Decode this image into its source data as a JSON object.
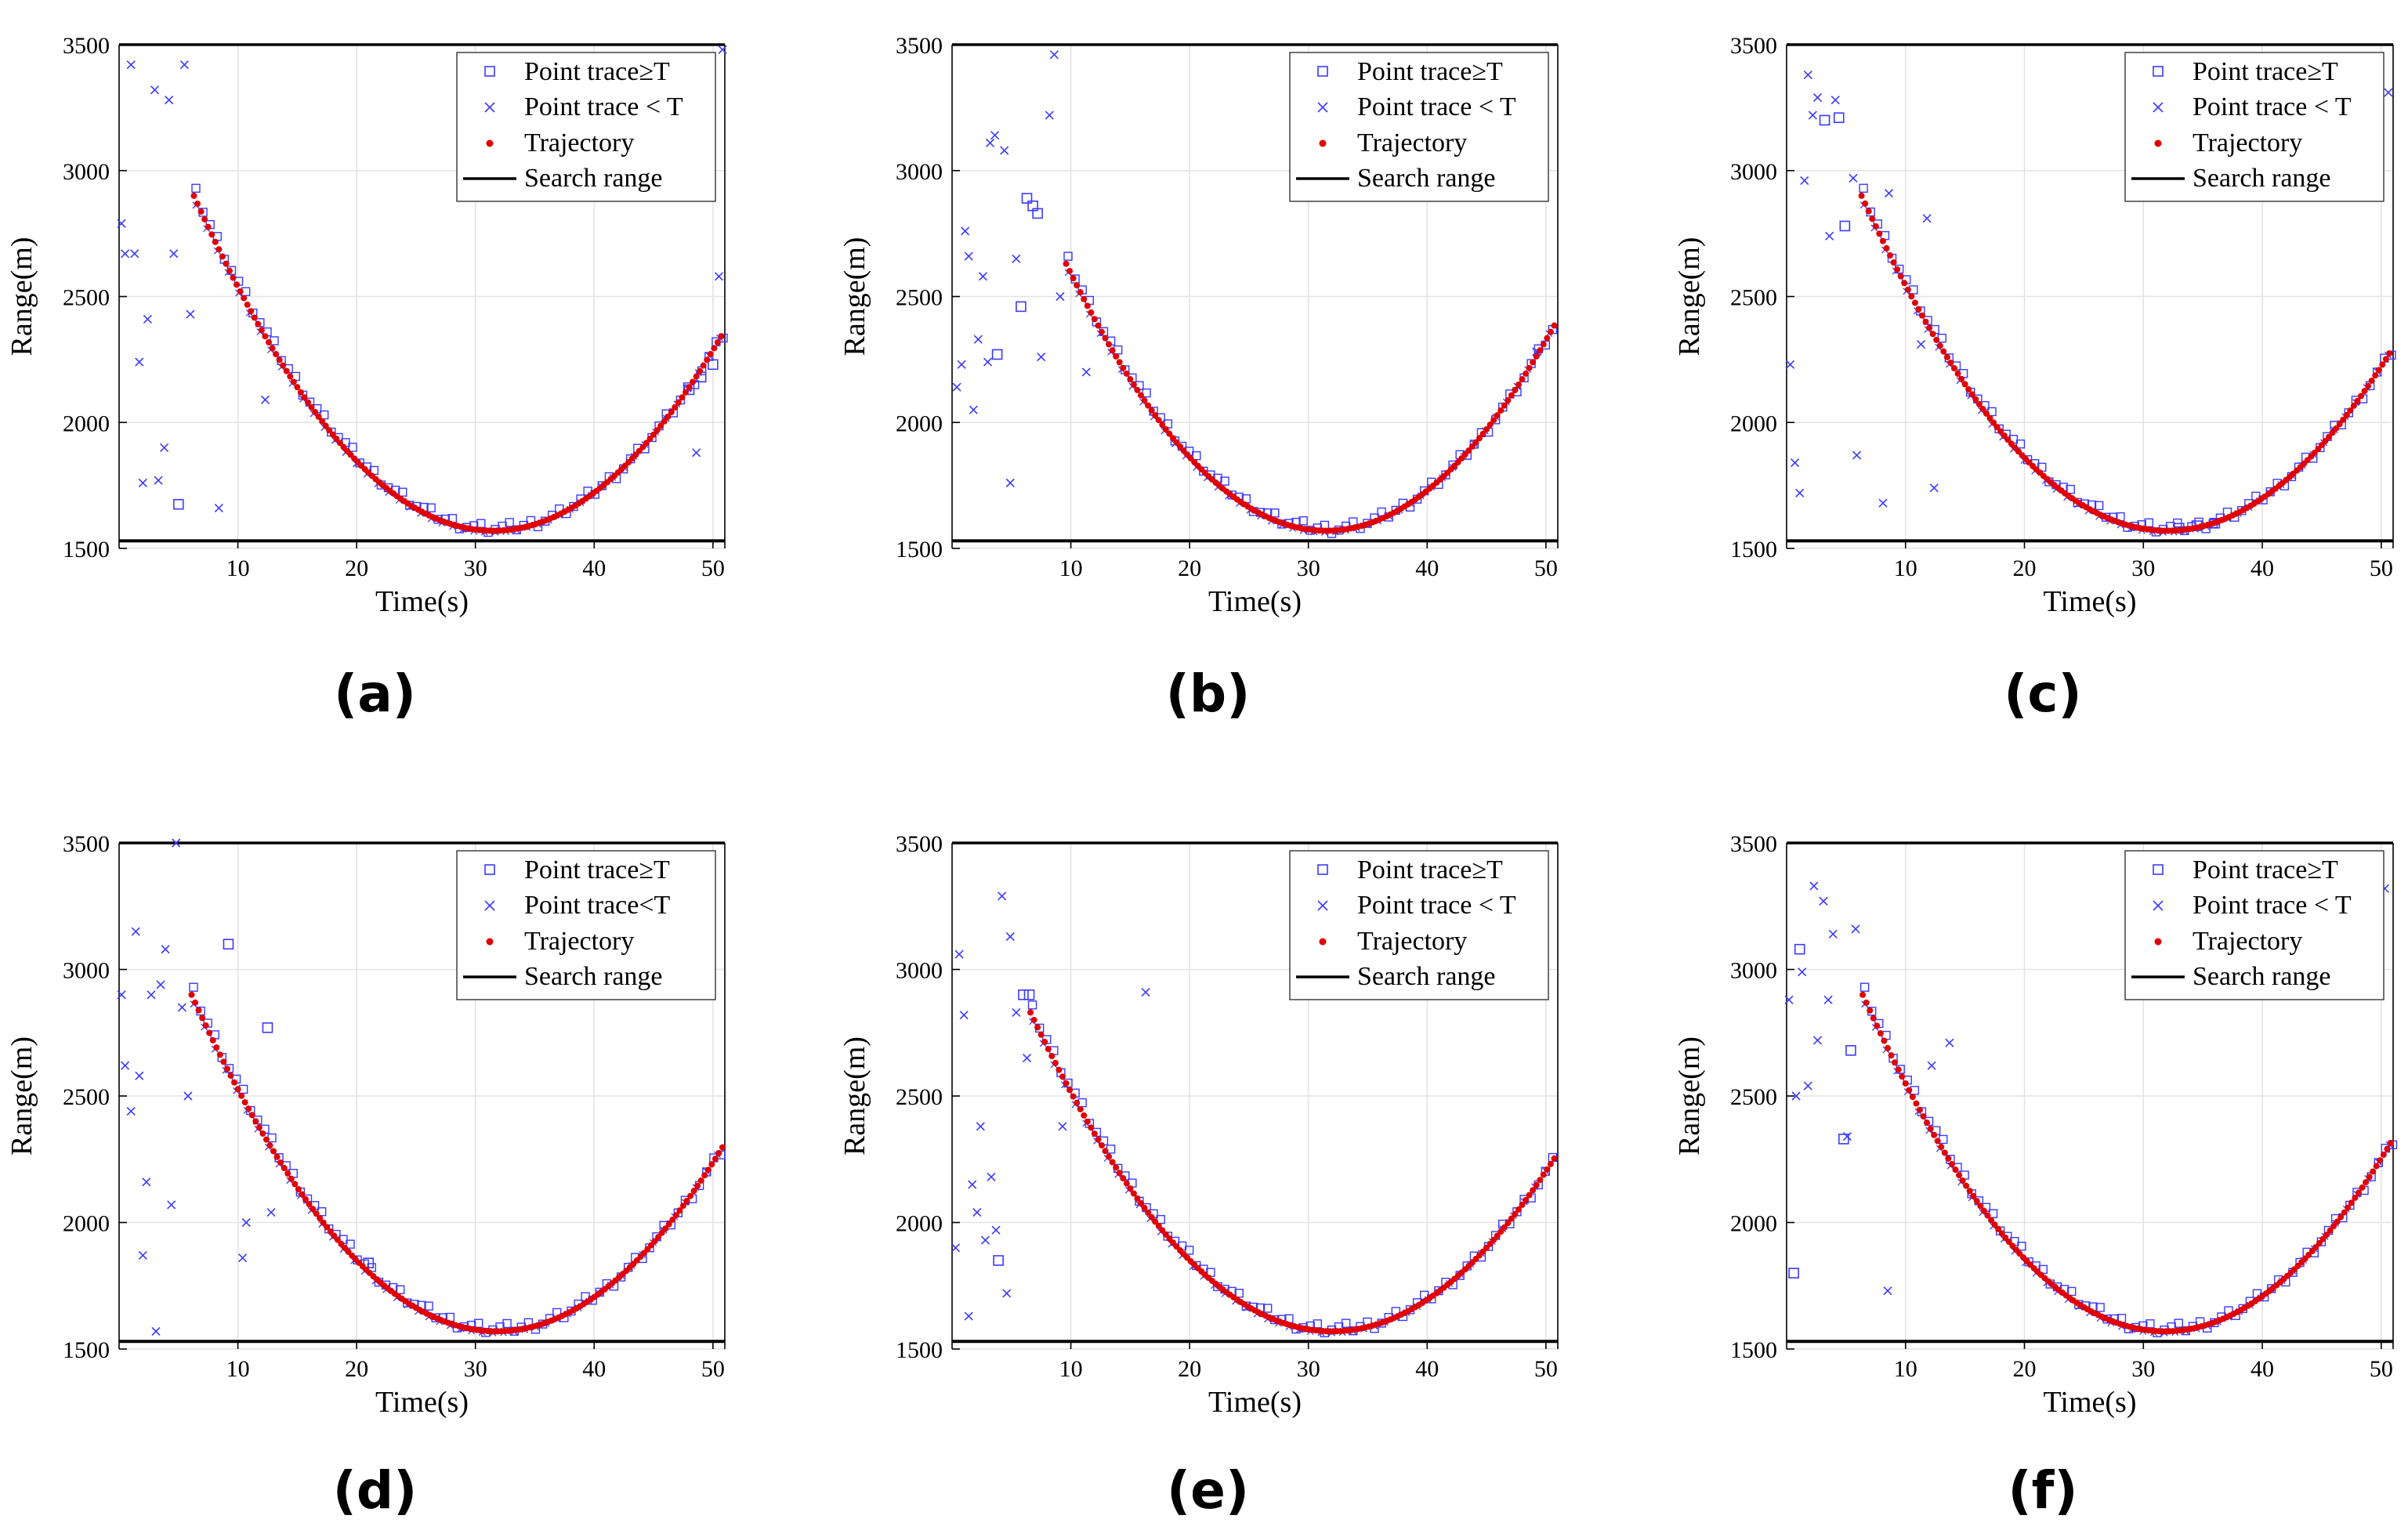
{
  "figure": {
    "legend_items": [
      "Point trace≥T",
      "Point trace < T",
      "Trajectory",
      "Search range"
    ],
    "colors": {
      "trace_marker": "#3a3aff",
      "trajectory": "#e00000",
      "search_line": "#000000",
      "grid": "#e3e3e3"
    }
  },
  "chart_data": [
    {
      "type": "scatter",
      "caption": "(a)",
      "xlabel": "Time(s)",
      "ylabel": "Range(m)",
      "xlim": [
        0,
        51
      ],
      "ylim": [
        1500,
        3500
      ],
      "xticks": [
        10,
        20,
        30,
        40,
        50
      ],
      "yticks": [
        1500,
        2000,
        2500,
        3000,
        3500
      ],
      "grid": true,
      "legend_position": "top-right",
      "legend": [
        "Point trace≥T",
        "Point trace < T",
        "Trajectory",
        "Search range"
      ],
      "search_range": 1530,
      "trajectory": {
        "t_start": 6.3,
        "t_end": 50.7,
        "t_min": 31.5,
        "r_min": 1570,
        "r_start": 2900
      },
      "point_trace_ge_T": [
        [
          5,
          1675
        ],
        [
          48,
          2130
        ],
        [
          49,
          2180
        ],
        [
          50,
          2230
        ]
      ],
      "point_trace_lt_T": [
        [
          0.2,
          2790
        ],
        [
          0.5,
          2670
        ],
        [
          1,
          3420
        ],
        [
          1.3,
          2670
        ],
        [
          1.7,
          2240
        ],
        [
          2,
          1760
        ],
        [
          2.4,
          2410
        ],
        [
          3,
          3320
        ],
        [
          3.3,
          1770
        ],
        [
          3.8,
          1900
        ],
        [
          4.2,
          3280
        ],
        [
          4.6,
          2670
        ],
        [
          5.5,
          3420
        ],
        [
          6,
          2430
        ],
        [
          8.4,
          1660
        ],
        [
          12.3,
          2090
        ],
        [
          48.6,
          1880
        ],
        [
          50.5,
          2580
        ],
        [
          50.8,
          3480
        ]
      ]
    },
    {
      "type": "scatter",
      "caption": "(b)",
      "xlabel": "Time(s)",
      "ylabel": "Range(m)",
      "xlim": [
        0,
        51
      ],
      "ylim": [
        1500,
        3500
      ],
      "xticks": [
        10,
        20,
        30,
        40,
        50
      ],
      "yticks": [
        1500,
        2000,
        2500,
        3000,
        3500
      ],
      "grid": true,
      "legend_position": "top-right",
      "legend": [
        "Point trace≥T",
        "Point trace < T",
        "Trajectory",
        "Search range"
      ],
      "search_range": 1530,
      "trajectory": {
        "t_start": 9.6,
        "t_end": 50.8,
        "t_min": 31.5,
        "r_min": 1570,
        "r_start": 2630
      },
      "point_trace_ge_T": [
        [
          3.8,
          2270
        ],
        [
          5.8,
          2460
        ],
        [
          6.3,
          2890
        ],
        [
          6.8,
          2860
        ],
        [
          7.2,
          2830
        ]
      ],
      "point_trace_lt_T": [
        [
          0.4,
          2140
        ],
        [
          0.8,
          2230
        ],
        [
          1.1,
          2760
        ],
        [
          1.4,
          2660
        ],
        [
          1.8,
          2050
        ],
        [
          2.2,
          2330
        ],
        [
          2.6,
          2580
        ],
        [
          3,
          2240
        ],
        [
          3.2,
          3110
        ],
        [
          3.6,
          3140
        ],
        [
          4.4,
          3080
        ],
        [
          4.9,
          1760
        ],
        [
          5.4,
          2650
        ],
        [
          7.5,
          2260
        ],
        [
          8.2,
          3220
        ],
        [
          8.6,
          3460
        ],
        [
          9.1,
          2500
        ],
        [
          11.3,
          2200
        ],
        [
          49.2,
          2280
        ]
      ]
    },
    {
      "type": "scatter",
      "caption": "(c)",
      "xlabel": "Time(s)",
      "ylabel": "Range(m)",
      "xlim": [
        0,
        51
      ],
      "ylim": [
        1500,
        3500
      ],
      "xticks": [
        10,
        20,
        30,
        40,
        50
      ],
      "yticks": [
        1500,
        2000,
        2500,
        3000,
        3500
      ],
      "grid": true,
      "legend_position": "top-right",
      "legend": [
        "Point trace≥T",
        "Point trace < T",
        "Trajectory",
        "Search range"
      ],
      "search_range": 1530,
      "trajectory": {
        "t_start": 6.3,
        "t_end": 50.8,
        "t_min": 32,
        "r_min": 1570,
        "r_start": 2900
      },
      "point_trace_ge_T": [
        [
          3.2,
          3200
        ],
        [
          4.4,
          3210
        ],
        [
          4.9,
          2780
        ],
        [
          33,
          1580
        ],
        [
          34.5,
          1590
        ],
        [
          36,
          1600
        ]
      ],
      "point_trace_lt_T": [
        [
          0.3,
          2230
        ],
        [
          0.7,
          1840
        ],
        [
          1.1,
          1720
        ],
        [
          1.5,
          2960
        ],
        [
          1.8,
          3380
        ],
        [
          2.2,
          3220
        ],
        [
          2.6,
          3290
        ],
        [
          3.6,
          2740
        ],
        [
          4.1,
          3280
        ],
        [
          5.6,
          2970
        ],
        [
          5.9,
          1870
        ],
        [
          8.1,
          1680
        ],
        [
          8.6,
          2910
        ],
        [
          11.3,
          2310
        ],
        [
          11.8,
          2810
        ],
        [
          12.4,
          1740
        ],
        [
          50.6,
          3310
        ]
      ]
    },
    {
      "type": "scatter",
      "caption": "(d)",
      "xlabel": "Time(s)",
      "ylabel": "Range(m)",
      "xlim": [
        0,
        51
      ],
      "ylim": [
        1500,
        3500
      ],
      "xticks": [
        10,
        20,
        30,
        40,
        50
      ],
      "yticks": [
        1500,
        2000,
        2500,
        3000,
        3500
      ],
      "grid": true,
      "legend_position": "top-right",
      "legend": [
        "Point trace≥T",
        "Point trace<T",
        "Trajectory",
        "Search range"
      ],
      "search_range": 1530,
      "trajectory": {
        "t_start": 6.1,
        "t_end": 50.9,
        "t_min": 31.8,
        "r_min": 1570,
        "r_start": 2900
      },
      "point_trace_ge_T": [
        [
          9.2,
          3100
        ],
        [
          12.5,
          2770
        ],
        [
          21,
          1840
        ]
      ],
      "point_trace_lt_T": [
        [
          0.2,
          2900
        ],
        [
          0.5,
          2620
        ],
        [
          1,
          2440
        ],
        [
          1.4,
          3150
        ],
        [
          1.7,
          2580
        ],
        [
          2,
          1870
        ],
        [
          2.3,
          2160
        ],
        [
          2.7,
          2900
        ],
        [
          3.1,
          1570
        ],
        [
          3.5,
          2940
        ],
        [
          3.9,
          3080
        ],
        [
          4.4,
          2070
        ],
        [
          4.8,
          3500
        ],
        [
          5.3,
          2850
        ],
        [
          5.8,
          2500
        ],
        [
          10.4,
          1860
        ],
        [
          10.7,
          2000
        ],
        [
          12.8,
          2040
        ]
      ]
    },
    {
      "type": "scatter",
      "caption": "(e)",
      "xlabel": "Time(s)",
      "ylabel": "Range(m)",
      "xlim": [
        0,
        51
      ],
      "ylim": [
        1500,
        3500
      ],
      "xticks": [
        10,
        20,
        30,
        40,
        50
      ],
      "yticks": [
        1500,
        2000,
        2500,
        3000,
        3500
      ],
      "grid": true,
      "legend_position": "top-right",
      "legend": [
        "Point trace≥T",
        "Point trace < T",
        "Trajectory",
        "Search range"
      ],
      "search_range": 1530,
      "trajectory": {
        "t_start": 6.6,
        "t_end": 50.8,
        "t_min": 32,
        "r_min": 1570,
        "r_start": 2830
      },
      "point_trace_ge_T": [
        [
          3.9,
          1850
        ],
        [
          6,
          2900
        ],
        [
          6.5,
          2900
        ]
      ],
      "point_trace_lt_T": [
        [
          0.3,
          1900
        ],
        [
          0.6,
          3060
        ],
        [
          1,
          2820
        ],
        [
          1.4,
          1630
        ],
        [
          1.7,
          2150
        ],
        [
          2.1,
          2040
        ],
        [
          2.4,
          2380
        ],
        [
          2.8,
          1930
        ],
        [
          3.3,
          2180
        ],
        [
          3.7,
          1970
        ],
        [
          4.2,
          3290
        ],
        [
          4.6,
          1720
        ],
        [
          4.9,
          3130
        ],
        [
          5.4,
          2830
        ],
        [
          6.3,
          2650
        ],
        [
          9.3,
          2380
        ],
        [
          16.3,
          2910
        ]
      ]
    },
    {
      "type": "scatter",
      "caption": "(f)",
      "xlabel": "Time(s)",
      "ylabel": "Range(m)",
      "xlim": [
        0,
        51
      ],
      "ylim": [
        1500,
        3500
      ],
      "xticks": [
        10,
        20,
        30,
        40,
        50
      ],
      "yticks": [
        1500,
        2000,
        2500,
        3000,
        3500
      ],
      "grid": true,
      "legend_position": "top-right",
      "legend": [
        "Point trace≥T",
        "Point trace < T",
        "Trajectory",
        "Search range"
      ],
      "search_range": 1530,
      "trajectory": {
        "t_start": 6.4,
        "t_end": 50.9,
        "t_min": 31.8,
        "r_min": 1570,
        "r_start": 2900
      },
      "point_trace_ge_T": [
        [
          0.6,
          1800
        ],
        [
          1.1,
          3080
        ],
        [
          4.8,
          2330
        ],
        [
          5.4,
          2680
        ]
      ],
      "point_trace_lt_T": [
        [
          0.2,
          2880
        ],
        [
          0.8,
          2500
        ],
        [
          1.3,
          2990
        ],
        [
          1.8,
          2540
        ],
        [
          2.3,
          3330
        ],
        [
          2.6,
          2720
        ],
        [
          3.1,
          3270
        ],
        [
          3.5,
          2880
        ],
        [
          3.9,
          3140
        ],
        [
          5.1,
          2340
        ],
        [
          5.8,
          3160
        ],
        [
          8.5,
          1730
        ],
        [
          12.2,
          2620
        ],
        [
          13.7,
          2710
        ],
        [
          50.3,
          3320
        ]
      ]
    }
  ]
}
